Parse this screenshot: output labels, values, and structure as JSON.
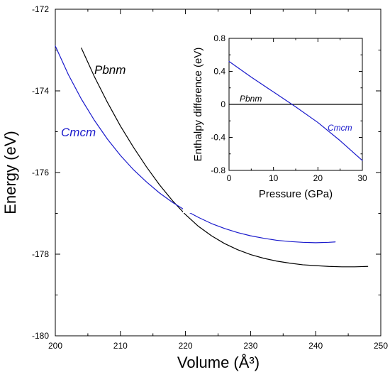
{
  "chart_data": [
    {
      "type": "line",
      "xlabel": "Volume (Å³)",
      "ylabel": "Energy (eV)",
      "xlim": [
        200,
        250
      ],
      "ylim": [
        -180,
        -172
      ],
      "x_ticks": [
        "200",
        "210",
        "220",
        "230",
        "240",
        "250"
      ],
      "y_ticks": [
        "-180",
        "-178",
        "-176",
        "-174",
        "-172"
      ],
      "series": [
        {
          "name": "Pbnm",
          "color": "#000000",
          "x": [
            204.0,
            206.0,
            208.0,
            210.0,
            212.0,
            214.0,
            216.0,
            218.0,
            220.0,
            222.0,
            224.0,
            226.0,
            228.0,
            230.0,
            232.0,
            234.0,
            236.0,
            238.0,
            240.0,
            242.0,
            244.0,
            246.0,
            248.0
          ],
          "values": [
            -172.95,
            -173.65,
            -174.28,
            -174.86,
            -175.38,
            -175.86,
            -176.3,
            -176.69,
            -177.03,
            -177.32,
            -177.55,
            -177.74,
            -177.89,
            -178.01,
            -178.1,
            -178.17,
            -178.22,
            -178.26,
            -178.28,
            -178.3,
            -178.31,
            -178.31,
            -178.3
          ]
        },
        {
          "name": "Cmcm",
          "color": "#1a1acc",
          "x": [
            200.0,
            202.0,
            204.0,
            206.0,
            208.0,
            210.0,
            212.0,
            214.0,
            216.0,
            218.0,
            220.0,
            222.0,
            224.0,
            226.0,
            228.0,
            230.0,
            232.0,
            234.0,
            236.0,
            238.0,
            240.0,
            242.0,
            243.0
          ],
          "values": [
            -172.9,
            -173.6,
            -174.2,
            -174.72,
            -175.18,
            -175.58,
            -175.93,
            -176.23,
            -176.5,
            -176.73,
            -176.93,
            -177.1,
            -177.25,
            -177.37,
            -177.47,
            -177.55,
            -177.61,
            -177.66,
            -177.69,
            -177.71,
            -177.72,
            -177.71,
            -177.7
          ]
        }
      ],
      "annotations": [
        "Pbnm",
        "Cmcm"
      ],
      "grid": false
    },
    {
      "type": "line",
      "xlabel": "Pressure (GPa)",
      "ylabel": "Enthalpy difference (eV)",
      "xlim": [
        0,
        30
      ],
      "ylim": [
        -0.8,
        0.8
      ],
      "x_ticks": [
        "0",
        "10",
        "20",
        "30"
      ],
      "y_ticks": [
        "-0.8",
        "-0.4",
        "0",
        "0.4",
        "0.8"
      ],
      "series": [
        {
          "name": "Pbnm",
          "color": "#000000",
          "x": [
            0,
            30
          ],
          "values": [
            0,
            0
          ]
        },
        {
          "name": "Cmcm",
          "color": "#1a1acc",
          "x": [
            0,
            5,
            10,
            15,
            20,
            25,
            30
          ],
          "values": [
            0.52,
            0.33,
            0.15,
            -0.03,
            -0.22,
            -0.44,
            -0.68
          ]
        }
      ],
      "annotations": [
        "Pbnm",
        "Cmcm"
      ],
      "grid": false
    }
  ]
}
